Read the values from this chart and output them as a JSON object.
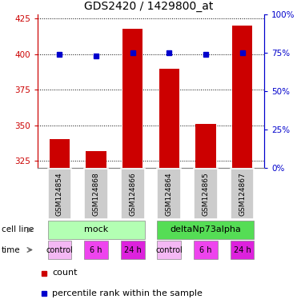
{
  "title": "GDS2420 / 1429800_at",
  "samples": [
    "GSM124854",
    "GSM124868",
    "GSM124866",
    "GSM124864",
    "GSM124865",
    "GSM124867"
  ],
  "counts": [
    340,
    332,
    418,
    390,
    351,
    420
  ],
  "percentile_ranks": [
    74,
    73,
    75,
    75,
    74,
    75
  ],
  "ylim_left": [
    320,
    428
  ],
  "ylim_right": [
    0,
    100
  ],
  "yticks_left": [
    325,
    350,
    375,
    400,
    425
  ],
  "yticks_right": [
    0,
    25,
    50,
    75,
    100
  ],
  "bar_color": "#cc0000",
  "dot_color": "#0000cc",
  "bar_bottom": 320,
  "cell_line_colors": {
    "mock": "#b3ffb3",
    "deltaNp73alpha": "#55dd55"
  },
  "time_labels": [
    "control",
    "6 h",
    "24 h",
    "control",
    "6 h",
    "24 h"
  ],
  "time_colors": [
    "#f4b8f4",
    "#ee44ee",
    "#dd22dd",
    "#f4b8f4",
    "#ee44ee",
    "#dd22dd"
  ],
  "legend_count_color": "#cc0000",
  "legend_pct_color": "#0000cc",
  "sample_box_color": "#cccccc",
  "left_axis_color": "#cc0000",
  "right_axis_color": "#0000cc",
  "bar_width": 0.55
}
